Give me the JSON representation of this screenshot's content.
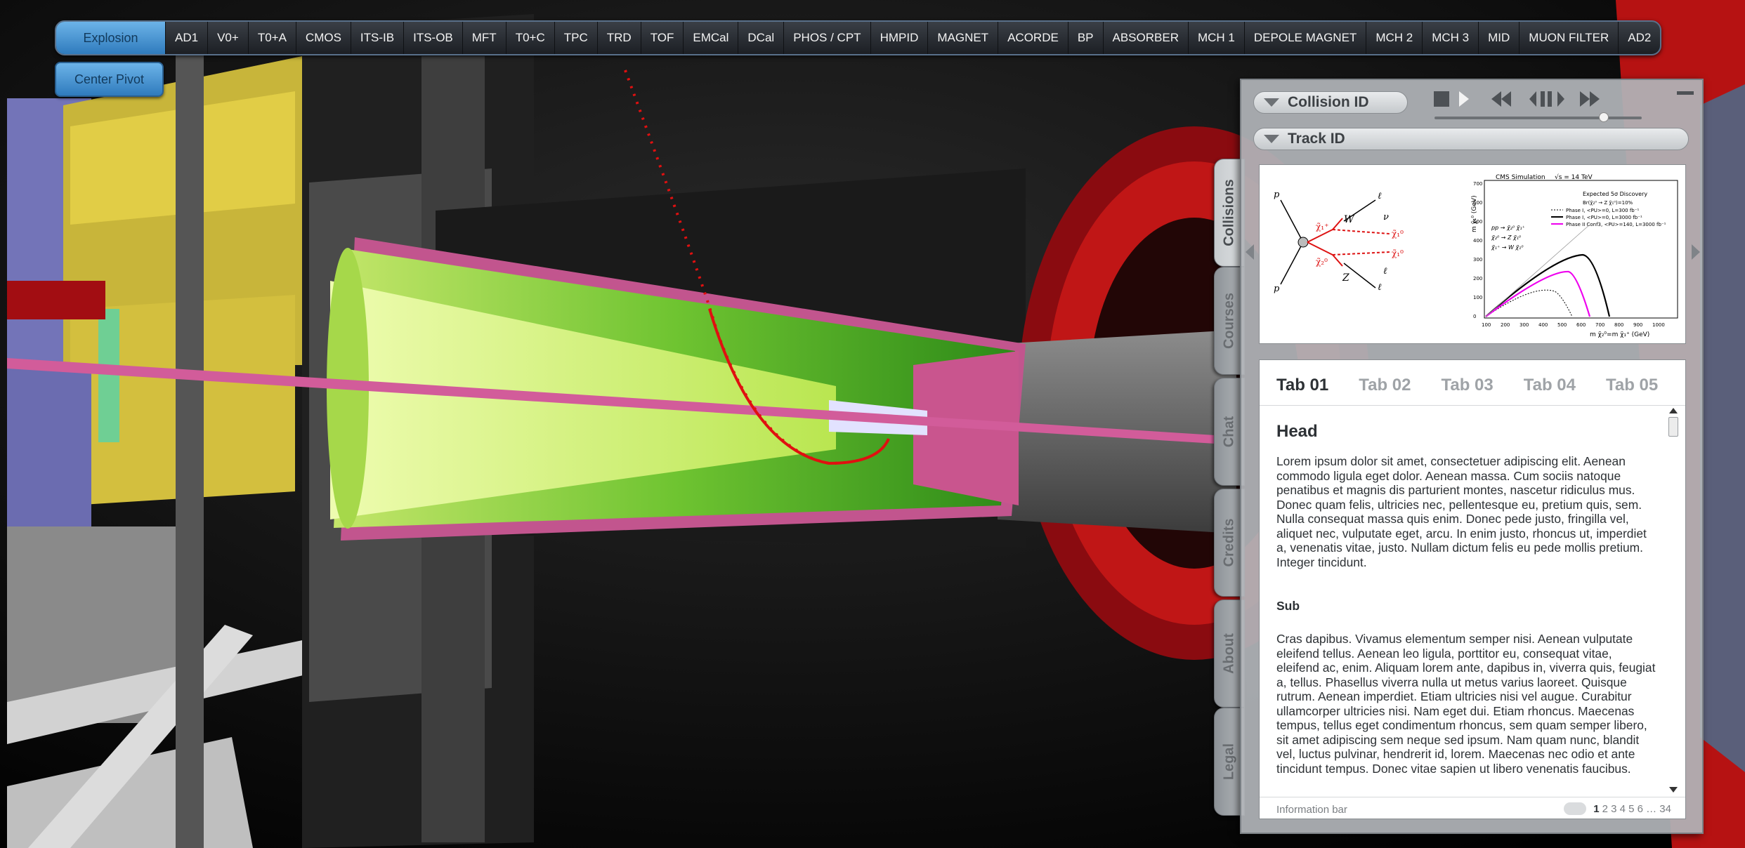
{
  "toolbar": {
    "items": [
      "Explosion",
      "AD1",
      "V0+",
      "T0+A",
      "CMOS",
      "ITS-IB",
      "ITS-OB",
      "MFT",
      "T0+C",
      "TPC",
      "TRD",
      "TOF",
      "EMCal",
      "DCal",
      "PHOS / CPT",
      "HMPID",
      "MAGNET",
      "ACORDE",
      "BP",
      "ABSORBER",
      "MCH 1",
      "DEPOLE MAGNET",
      "MCH 2",
      "MCH 3",
      "MID",
      "MUON FILTER",
      "AD2"
    ],
    "center_pivot": "Center Pivot"
  },
  "side_tabs": [
    "Collisions",
    "Courses",
    "Chat",
    "Credits",
    "About",
    "Legal"
  ],
  "panel": {
    "collision_label": "Collision ID",
    "track_label": "Track ID",
    "figure": {
      "diagram_labels": {
        "p": "p",
        "W": "W",
        "Z": "Z",
        "l": "ℓ",
        "nu": "ν",
        "chi_top": "χ̃₁⁺",
        "chi_bottom": "χ̃₂⁰",
        "chi_out_top": "χ̃₁⁰",
        "chi_out_bottom": "χ̃₁⁰"
      },
      "plot_title": "CMS Simulation",
      "plot_energy": "√s = 14 TeV",
      "plot_legend_title": "Expected 5σ Discovery",
      "plot_legend_sub": "Br(χ̃₂⁰ → Z χ̃₁⁰)=10%",
      "plot_legend_entries": [
        "Phase I,   <PU>=0,   L=300 fb⁻¹",
        "Phase I,   <PU>=0,   L=3000 fb⁻¹",
        "Phase II Conf3, <PU>=140, L=3000 fb⁻¹"
      ],
      "plot_processes": [
        "pp → χ̃₂⁰ χ̃₁⁺",
        "χ̃₂⁰ → Z χ̃₁⁰",
        "χ̃₁⁺ → W χ̃₁⁰"
      ],
      "plot_ylabel": "m χ̃₁⁰ (GeV)",
      "plot_xlabel": "m χ̃₂⁰=m χ̃₁⁺ (GeV)",
      "y_ticks": [
        "0",
        "100",
        "200",
        "300",
        "400",
        "500",
        "600",
        "700"
      ],
      "x_ticks": [
        "100",
        "200",
        "300",
        "400",
        "500",
        "600",
        "700",
        "800",
        "900",
        "1000"
      ]
    },
    "tabs": [
      "Tab 01",
      "Tab 02",
      "Tab 03",
      "Tab 04",
      "Tab 05"
    ],
    "content": {
      "head": "Head",
      "para1": "Lorem ipsum dolor sit amet, consectetuer adipiscing elit. Aenean commodo ligula eget dolor. Aenean massa. Cum sociis natoque penatibus et magnis dis parturient montes, nascetur ridiculus mus. Donec quam felis, ultricies nec, pellentesque eu, pretium quis, sem. Nulla consequat massa quis enim. Donec pede justo, fringilla vel, aliquet nec, vulputate eget, arcu. In enim justo, rhoncus ut, imperdiet a, venenatis vitae, justo. Nullam dictum felis eu pede mollis pretium. Integer tincidunt.",
      "sub": "Sub",
      "para2": "Cras dapibus. Vivamus elementum semper nisi. Aenean vulputate eleifend tellus. Aenean leo ligula, porttitor eu, consequat vitae, eleifend ac, enim. Aliquam lorem ante, dapibus in, viverra quis, feugiat a, tellus. Phasellus viverra nulla ut metus varius laoreet. Quisque rutrum. Aenean imperdiet. Etiam ultricies nisi vel augue. Curabitur ullamcorper ultricies nisi. Nam eget dui. Etiam rhoncus. Maecenas tempus, tellus eget condimentum rhoncus, sem quam semper libero, sit amet adipiscing sem neque sed ipsum. Nam quam nunc, blandit vel, luctus pulvinar, hendrerit id, lorem. Maecenas nec odio et ante tincidunt tempus. Donec vitae sapien ut libero venenatis faucibus."
    },
    "info_bar": "Information bar",
    "pager": {
      "current": "1",
      "others": "2 3 4 5 6 … 34"
    }
  },
  "colors": {
    "button_blue": "#4a97d6",
    "panel_grey": "#b0b4b8",
    "detector_green": "#2f9a1e",
    "detector_magenta": "#c0457e",
    "track_red": "#e01010"
  }
}
